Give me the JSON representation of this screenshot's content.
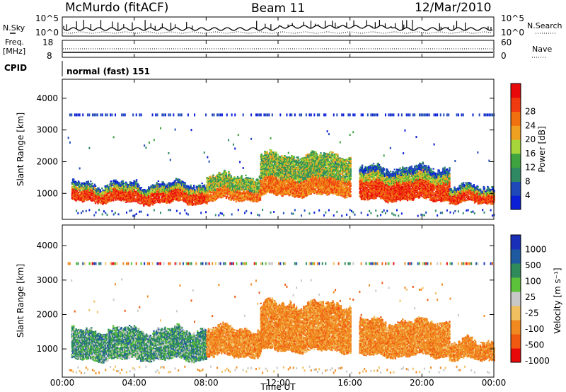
{
  "header": {
    "station": "McMurdo (fitACF)",
    "beam": "Beam 11",
    "date": "12/Mar/2010"
  },
  "noise_panel": {
    "left_label": "N.Sky",
    "right_label": "N.Search",
    "ticks_left": [
      "10^5",
      "10^0"
    ],
    "ticks_right": [
      "10^5",
      "10^0"
    ]
  },
  "freq_panel": {
    "left_label_1": "Freq.",
    "left_label_2": "[MHz]",
    "right_label": "Nave",
    "ticks_left": [
      "18",
      "8"
    ],
    "ticks_right": [
      "60",
      "0"
    ]
  },
  "cpid": {
    "label": "CPID",
    "mode": "normal (fast) 151"
  },
  "colors": {
    "power_scale": [
      "#0a1fd6",
      "#1f49b8",
      "#2f8a64",
      "#3fa33f",
      "#a6d63a",
      "#f0a020",
      "#f07010",
      "#f03a10",
      "#e80a0a"
    ],
    "velocity_scale": [
      "#1a2fb8",
      "#1f5aa0",
      "#2f8c5a",
      "#5cc23a",
      "#c8c8c8",
      "#f0c060",
      "#f08a20",
      "#f05a10",
      "#e80a0a"
    ]
  },
  "chart_data": [
    {
      "type": "heatmap",
      "name": "power",
      "ylabel": "Slant Range [km]",
      "ylim": [
        180,
        4600
      ],
      "yticks": [
        "1000",
        "2000",
        "3000",
        "4000"
      ],
      "xlim": [
        0,
        24
      ],
      "xticks": [
        "00:00",
        "04:00",
        "08:00",
        "12:00",
        "16:00",
        "20:00",
        "00:00"
      ],
      "colorbar": {
        "label": "Power [dB]",
        "ticks": [
          "4",
          "8",
          "12",
          "16",
          "20",
          "24",
          "28"
        ],
        "range": [
          0,
          32
        ]
      },
      "segments": [
        {
          "t": [
            0.5,
            3.5
          ],
          "r": [
            700,
            1200
          ],
          "level": "high"
        },
        {
          "t": [
            3.5,
            8.0
          ],
          "r": [
            650,
            1200
          ],
          "level": "high"
        },
        {
          "t": [
            8.0,
            11.0
          ],
          "r": [
            750,
            1450
          ],
          "level": "mid"
        },
        {
          "t": [
            11.0,
            16.0
          ],
          "r": [
            900,
            2100
          ],
          "level": "mid"
        },
        {
          "t": [
            16.5,
            21.5
          ],
          "r": [
            750,
            1700
          ],
          "level": "high"
        },
        {
          "t": [
            21.5,
            24.0
          ],
          "r": [
            650,
            1100
          ],
          "level": "high"
        }
      ]
    },
    {
      "type": "heatmap",
      "name": "velocity",
      "ylabel": "Slant Range [km]",
      "ylim": [
        180,
        4600
      ],
      "yticks": [
        "1000",
        "2000",
        "3000",
        "4000"
      ],
      "xlim": [
        0,
        24
      ],
      "xticks": [
        "00:00",
        "04:00",
        "08:00",
        "12:00",
        "16:00",
        "20:00",
        "00:00"
      ],
      "xlabel": "Time UT",
      "colorbar": {
        "label": "Velocity [m s⁻¹]",
        "ticks": [
          "1000",
          "500",
          "100",
          "25",
          "-25",
          "-100",
          "-500",
          "-1000"
        ],
        "range": [
          -1000,
          1000
        ]
      },
      "segments": [
        {
          "t": [
            0.5,
            8.0
          ],
          "r": [
            650,
            1450
          ],
          "v": 400
        },
        {
          "t": [
            8.0,
            11.0
          ],
          "r": [
            750,
            1500
          ],
          "v": -150
        },
        {
          "t": [
            11.0,
            16.0
          ],
          "r": [
            900,
            2200
          ],
          "v": -250
        },
        {
          "t": [
            16.5,
            21.5
          ],
          "r": [
            750,
            1700
          ],
          "v": -250
        },
        {
          "t": [
            21.5,
            24.0
          ],
          "r": [
            650,
            1100
          ],
          "v": -200
        }
      ]
    }
  ]
}
